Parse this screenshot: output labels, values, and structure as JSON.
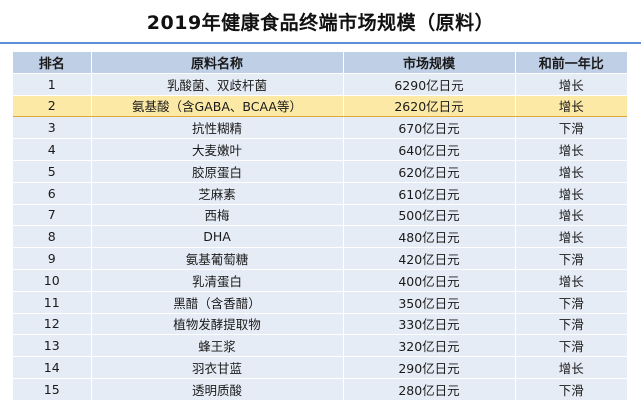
{
  "title": "2019年健康食品终端市场规模（原料）",
  "headers": [
    "排名",
    "原料名称",
    "市场规模",
    "和前一年比"
  ],
  "highlight_rank": "2",
  "rows": [
    {
      "rank": "1",
      "name": "乳酸菌、双歧杆菌",
      "size": "6290亿日元",
      "trend": "增长"
    },
    {
      "rank": "2",
      "name": "氨基酸（含GABA、BCAA等）",
      "size": "2620亿日元",
      "trend": "增长"
    },
    {
      "rank": "3",
      "name": "抗性糊精",
      "size": "670亿日元",
      "trend": "下滑"
    },
    {
      "rank": "4",
      "name": "大麦嫩叶",
      "size": "640亿日元",
      "trend": "增长"
    },
    {
      "rank": "5",
      "name": "胶原蛋白",
      "size": "620亿日元",
      "trend": "增长"
    },
    {
      "rank": "6",
      "name": "芝麻素",
      "size": "610亿日元",
      "trend": "增长"
    },
    {
      "rank": "7",
      "name": "西梅",
      "size": "500亿日元",
      "trend": "增长"
    },
    {
      "rank": "8",
      "name": "DHA",
      "size": "480亿日元",
      "trend": "增长"
    },
    {
      "rank": "9",
      "name": "氨基葡萄糖",
      "size": "420亿日元",
      "trend": "下滑"
    },
    {
      "rank": "10",
      "name": "乳清蛋白",
      "size": "400亿日元",
      "trend": "增长"
    },
    {
      "rank": "11",
      "name": "黑醋（含香醋）",
      "size": "350亿日元",
      "trend": "下滑"
    },
    {
      "rank": "12",
      "name": "植物发酵提取物",
      "size": "330亿日元",
      "trend": "下滑"
    },
    {
      "rank": "13",
      "name": "蜂王浆",
      "size": "320亿日元",
      "trend": "下滑"
    },
    {
      "rank": "14",
      "name": "羽衣甘蓝",
      "size": "290亿日元",
      "trend": "增长"
    },
    {
      "rank": "15",
      "name": "透明质酸",
      "size": "280亿日元",
      "trend": "下滑"
    }
  ]
}
